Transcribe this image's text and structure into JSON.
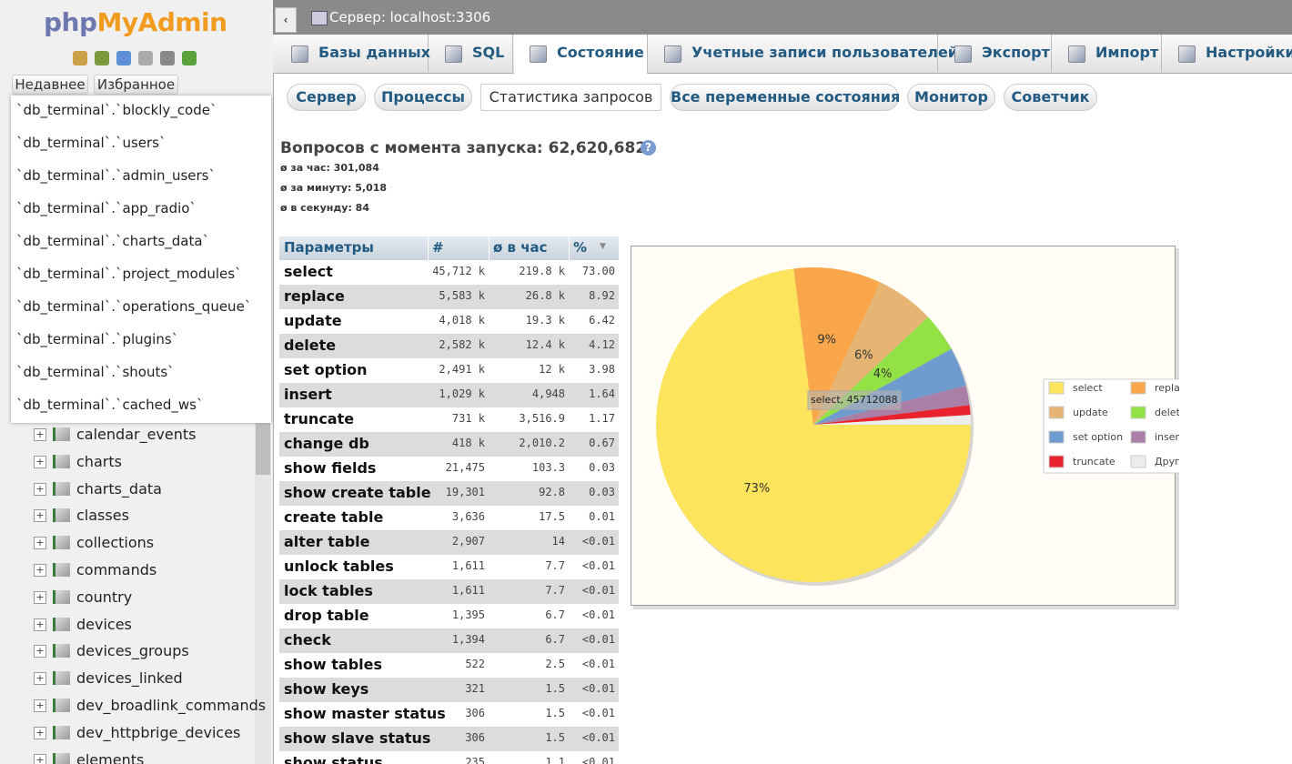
{
  "sidebar": {
    "logo": [
      "php",
      "MyAdmin"
    ],
    "buttons": [
      "Недавнее",
      "Избранное"
    ],
    "recent": [
      "`db_terminal`.`blockly_code`",
      "`db_terminal`.`users`",
      "`db_terminal`.`admin_users`",
      "`db_terminal`.`app_radio`",
      "`db_terminal`.`charts_data`",
      "`db_terminal`.`project_modules`",
      "`db_terminal`.`operations_queue`",
      "`db_terminal`.`plugins`",
      "`db_terminal`.`shouts`",
      "`db_terminal`.`cached_ws`"
    ],
    "tree": [
      "calendar_events",
      "charts",
      "charts_data",
      "classes",
      "collections",
      "commands",
      "country",
      "devices",
      "devices_groups",
      "devices_linked",
      "dev_broadlink_commands",
      "dev_httpbrige_devices",
      "elements"
    ]
  },
  "topbar": {
    "server": "Сервер: localhost:3306"
  },
  "tabs": [
    "Базы данных",
    "SQL",
    "Состояние",
    "Учетные записи пользователей",
    "Экспорт",
    "Импорт",
    "Настройки"
  ],
  "active_tab": 2,
  "subtabs": [
    "Сервер",
    "Процессы",
    "Статистика запросов",
    "Все переменные состояния",
    "Монитор",
    "Советчик"
  ],
  "active_subtab": 2,
  "status": {
    "title": "Вопросов с момента запуска: 62,620,682",
    "stats": [
      "ø за час: 301,084",
      "ø за минуту: 5,018",
      "ø в секунду: 84"
    ]
  },
  "table": {
    "headers": [
      "Параметры",
      "#",
      "ø в час",
      "%"
    ],
    "rows": [
      [
        "select",
        "45,712 k",
        "219.8 k",
        "73.00"
      ],
      [
        "replace",
        "5,583 k",
        "26.8 k",
        "8.92"
      ],
      [
        "update",
        "4,018 k",
        "19.3 k",
        "6.42"
      ],
      [
        "delete",
        "2,582 k",
        "12.4 k",
        "4.12"
      ],
      [
        "set option",
        "2,491 k",
        "12 k",
        "3.98"
      ],
      [
        "insert",
        "1,029 k",
        "4,948",
        "1.64"
      ],
      [
        "truncate",
        "731 k",
        "3,516.9",
        "1.17"
      ],
      [
        "change db",
        "418 k",
        "2,010.2",
        "0.67"
      ],
      [
        "show fields",
        "21,475",
        "103.3",
        "0.03"
      ],
      [
        "show create table",
        "19,301",
        "92.8",
        "0.03"
      ],
      [
        "create table",
        "3,636",
        "17.5",
        "0.01"
      ],
      [
        "alter table",
        "2,907",
        "14",
        "<0.01"
      ],
      [
        "unlock tables",
        "1,611",
        "7.7",
        "<0.01"
      ],
      [
        "lock tables",
        "1,611",
        "7.7",
        "<0.01"
      ],
      [
        "drop table",
        "1,395",
        "6.7",
        "<0.01"
      ],
      [
        "check",
        "1,394",
        "6.7",
        "<0.01"
      ],
      [
        "show tables",
        "522",
        "2.5",
        "<0.01"
      ],
      [
        "show keys",
        "321",
        "1.5",
        "<0.01"
      ],
      [
        "show master status",
        "306",
        "1.5",
        "<0.01"
      ],
      [
        "show slave status",
        "306",
        "1.5",
        "<0.01"
      ],
      [
        "show status",
        "235",
        "1.1",
        "<0.01"
      ]
    ]
  },
  "chart": {
    "type": "pie",
    "categories": [
      "select",
      "replace",
      "update",
      "delete",
      "set option",
      "insert",
      "truncate",
      "Другое"
    ],
    "values": [
      73,
      9,
      6,
      4,
      4,
      2,
      1,
      1
    ],
    "value_labels": [
      "73%",
      "9%",
      "6%",
      "4%",
      null,
      null,
      null,
      null
    ],
    "colors": [
      "#fce45c",
      "#f9a74a",
      "#e6b573",
      "#92e145",
      "#6f9ccf",
      "#a97fa8",
      "#e8232d",
      "#ededed"
    ],
    "tooltip": "select, 45712088"
  }
}
